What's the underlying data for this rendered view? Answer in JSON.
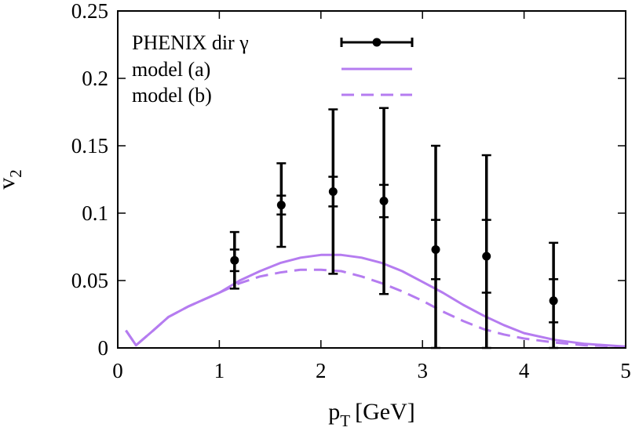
{
  "chart_data": {
    "type": "scatter",
    "xlabel": "p",
    "xlabel_sub": "T",
    "xlabel_unit": "[GeV]",
    "ylabel": "v",
    "ylabel_sub": "2",
    "xlim": [
      0,
      5
    ],
    "ylim": [
      0,
      0.25
    ],
    "x_ticks": [
      0,
      1,
      2,
      3,
      4,
      5
    ],
    "x_tick_labels": [
      "0",
      "1",
      "2",
      "3",
      "4",
      "5"
    ],
    "y_ticks": [
      0,
      0.05,
      0.1,
      0.15,
      0.2,
      0.25
    ],
    "y_tick_labels": [
      "0",
      "0.05",
      "0.1",
      "0.15",
      "0.2",
      "0.25"
    ],
    "grid": false,
    "legend_position": "top-left",
    "series": [
      {
        "name": "PHENIX dir γ",
        "kind": "points_with_errorbars",
        "color": "#000000",
        "x": [
          1.15,
          1.61,
          2.12,
          2.62,
          3.13,
          3.63,
          4.29
        ],
        "y": [
          0.065,
          0.106,
          0.116,
          0.109,
          0.073,
          0.068,
          0.035
        ],
        "err_stat": [
          0.008,
          0.007,
          0.011,
          0.012,
          0.022,
          0.027,
          0.016
        ],
        "err_total": [
          0.021,
          0.031,
          0.061,
          0.069,
          0.077,
          0.075,
          0.043
        ]
      },
      {
        "name": "model (a)",
        "kind": "line",
        "style": "solid",
        "color": "#b57cf0",
        "x": [
          0.08,
          0.18,
          0.35,
          0.5,
          0.7,
          1.0,
          1.2,
          1.4,
          1.6,
          1.8,
          2.0,
          2.2,
          2.4,
          2.6,
          2.8,
          3.0,
          3.2,
          3.4,
          3.6,
          3.8,
          4.0,
          4.3,
          4.6,
          5.0
        ],
        "y": [
          0.013,
          0.002,
          0.013,
          0.023,
          0.031,
          0.041,
          0.05,
          0.057,
          0.063,
          0.067,
          0.069,
          0.069,
          0.067,
          0.063,
          0.057,
          0.049,
          0.041,
          0.032,
          0.024,
          0.017,
          0.011,
          0.006,
          0.003,
          0.001
        ]
      },
      {
        "name": "model (b)",
        "kind": "line",
        "style": "dashed",
        "color": "#b57cf0",
        "x": [
          0.08,
          0.18,
          0.35,
          0.5,
          0.7,
          1.0,
          1.2,
          1.4,
          1.6,
          1.8,
          2.0,
          2.2,
          2.4,
          2.6,
          2.8,
          3.0,
          3.2,
          3.4,
          3.6,
          3.8,
          4.0,
          4.3,
          4.6,
          5.0
        ],
        "y": [
          0.013,
          0.002,
          0.013,
          0.023,
          0.031,
          0.041,
          0.048,
          0.053,
          0.056,
          0.058,
          0.058,
          0.057,
          0.053,
          0.048,
          0.042,
          0.035,
          0.027,
          0.02,
          0.014,
          0.01,
          0.007,
          0.004,
          0.002,
          0.001
        ]
      }
    ]
  }
}
